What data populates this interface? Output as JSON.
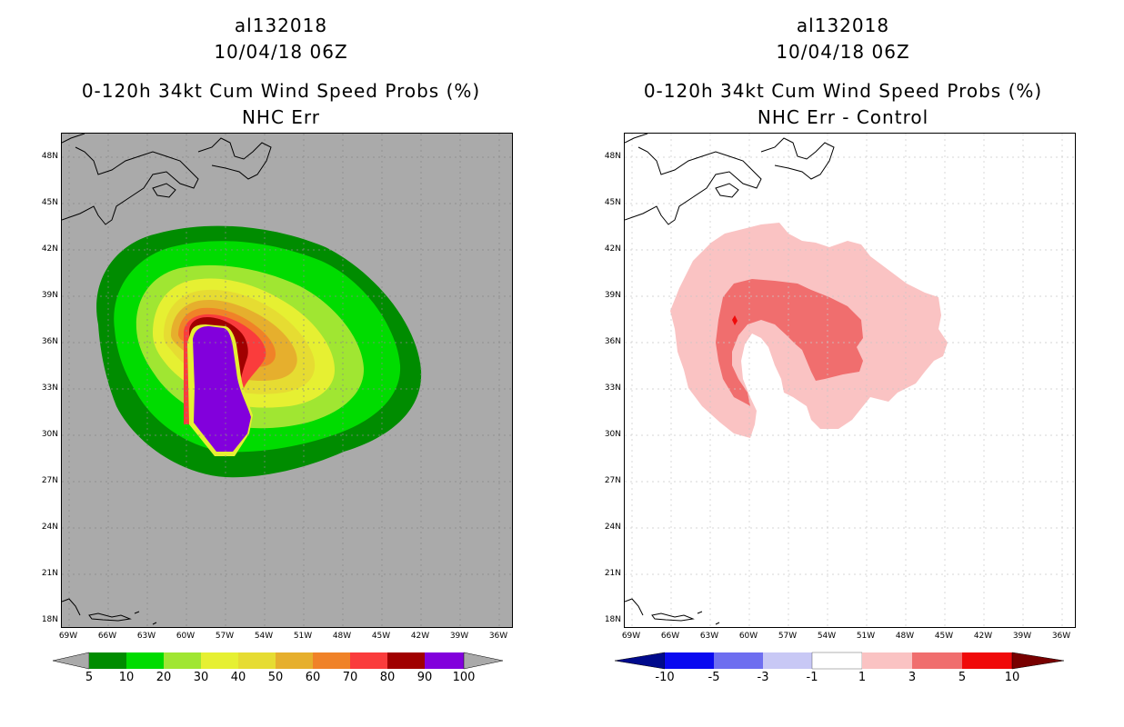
{
  "left": {
    "storm_id": "al132018",
    "datetime": "10/04/18 06Z",
    "product": "0-120h 34kt Cum Wind Speed Probs (%)",
    "subtitle": "NHC Err",
    "lat_labels": [
      "48N",
      "45N",
      "42N",
      "39N",
      "36N",
      "33N",
      "30N",
      "27N",
      "24N",
      "21N",
      "18N"
    ],
    "lon_labels": [
      "69W",
      "66W",
      "63W",
      "60W",
      "57W",
      "54W",
      "51W",
      "48W",
      "45W",
      "42W",
      "39W",
      "36W"
    ],
    "colorbar": {
      "labels": [
        "5",
        "10",
        "20",
        "30",
        "40",
        "50",
        "60",
        "70",
        "80",
        "90",
        "100"
      ],
      "colors": [
        "#008c00",
        "#00dc00",
        "#a0e632",
        "#e6f032",
        "#e6dc32",
        "#e6af2d",
        "#f08228",
        "#fa3c3c",
        "#a00000",
        "#8200dc"
      ]
    }
  },
  "right": {
    "storm_id": "al132018",
    "datetime": "10/04/18 06Z",
    "product": "0-120h 34kt Cum Wind Speed Probs (%)",
    "subtitle": "NHC Err - Control",
    "lat_labels": [
      "48N",
      "45N",
      "42N",
      "39N",
      "36N",
      "33N",
      "30N",
      "27N",
      "24N",
      "21N",
      "18N"
    ],
    "lon_labels": [
      "69W",
      "66W",
      "63W",
      "60W",
      "57W",
      "54W",
      "51W",
      "48W",
      "45W",
      "42W",
      "39W",
      "36W"
    ],
    "colorbar": {
      "labels": [
        "-10",
        "-5",
        "-3",
        "-1",
        "1",
        "3",
        "5",
        "10"
      ],
      "colors": [
        "#000a8c",
        "#0a0af0",
        "#6e6ef0",
        "#c8c8f5",
        "#ffffff",
        "#fac3c3",
        "#f06e6e",
        "#f00a0a",
        "#780000"
      ]
    }
  },
  "colors": {
    "land_background": "#aaaaaa",
    "map_white": "#ffffff",
    "gridline": "#c8c8c8"
  }
}
